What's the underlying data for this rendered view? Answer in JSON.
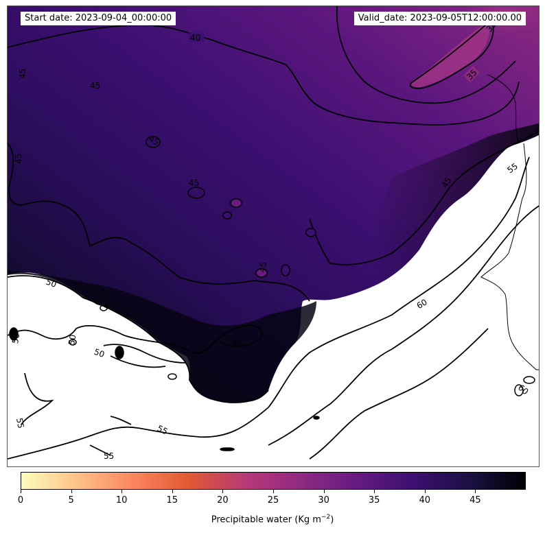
{
  "header": {
    "start_date": "Start date: 2023-09-04_00:00:00",
    "valid_date": "Valid_date: 2023-09-05T12:00:00.00"
  },
  "colorbar": {
    "label": "Precipitable water (Kg m",
    "label_exp": "−2",
    "label_close": ")",
    "colormap": "magma_r",
    "min": 0,
    "max": 50,
    "ticks": [
      "0",
      "5",
      "10",
      "15",
      "20",
      "25",
      "30",
      "35",
      "40",
      "45"
    ]
  },
  "contours": {
    "labels": [
      "40",
      "35",
      "35",
      "45",
      "45",
      "45",
      "45",
      "45",
      "45",
      "45",
      "45",
      "50",
      "50",
      "50",
      "50",
      "55",
      "55",
      "55",
      "60",
      "60"
    ]
  },
  "colors": {
    "high_pw": "#000004",
    "mid_pw": "#3b0f70",
    "low_pw": "#8c2981",
    "masked": "#ffffff"
  }
}
